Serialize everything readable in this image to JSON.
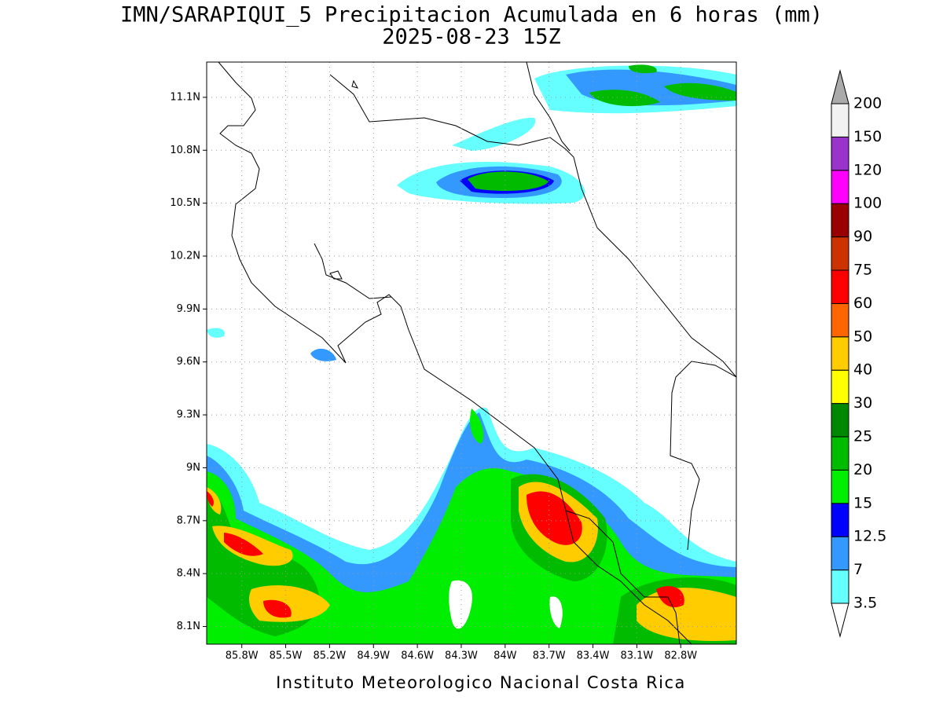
{
  "title": "IMN/SARAPIQUI_5 Precipitacion Acumulada en 6 horas (mm)",
  "subtitle": "2025-08-23 15Z",
  "footer": "Instituto Meteorologico Nacional Costa Rica",
  "map": {
    "lonlim": [
      -86.04,
      -82.42
    ],
    "latlim": [
      8.0,
      11.3
    ],
    "grid": true,
    "lat_ticks": [
      {
        "value": 11.1,
        "label": "11.1N"
      },
      {
        "value": 10.8,
        "label": "10.8N"
      },
      {
        "value": 10.5,
        "label": "10.5N"
      },
      {
        "value": 10.2,
        "label": "10.2N"
      },
      {
        "value": 9.9,
        "label": "9.9N"
      },
      {
        "value": 9.6,
        "label": "9.6N"
      },
      {
        "value": 9.3,
        "label": "9.3N"
      },
      {
        "value": 9,
        "label": "9N"
      },
      {
        "value": 8.7,
        "label": "8.7N"
      },
      {
        "value": 8.4,
        "label": "8.4N"
      },
      {
        "value": 8.1,
        "label": "8.1N"
      }
    ],
    "lon_ticks": [
      {
        "value": -85.8,
        "label": "85.8W"
      },
      {
        "value": -85.5,
        "label": "85.5W"
      },
      {
        "value": -85.2,
        "label": "85.2W"
      },
      {
        "value": -84.9,
        "label": "84.9W"
      },
      {
        "value": -84.6,
        "label": "84.6W"
      },
      {
        "value": -84.3,
        "label": "84.3W"
      },
      {
        "value": -84,
        "label": "84W"
      },
      {
        "value": -83.7,
        "label": "83.7W"
      },
      {
        "value": -83.4,
        "label": "83.4W"
      },
      {
        "value": -83.1,
        "label": "83.1W"
      },
      {
        "value": -82.8,
        "label": "82.8W"
      }
    ]
  },
  "colorbar": {
    "levels": [
      3.5,
      7,
      12.5,
      15,
      20,
      25,
      30,
      40,
      50,
      60,
      75,
      90,
      100,
      120,
      150,
      200
    ],
    "colors": [
      "#66ffff",
      "#3399ff",
      "#0000ff",
      "#00ee00",
      "#00bb00",
      "#008800",
      "#ffff00",
      "#ffcc00",
      "#ff6600",
      "#ff0000",
      "#cc3300",
      "#990000",
      "#ff00ff",
      "#9933cc",
      "#f2f2f2"
    ],
    "under_color": "#ffffff",
    "over_color": "#aaaaaa"
  }
}
